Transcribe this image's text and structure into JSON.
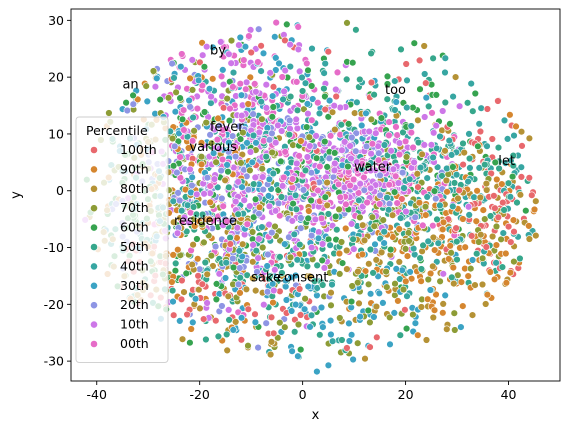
{
  "chart_data": {
    "type": "scatter",
    "title": "",
    "xlabel": "x",
    "ylabel": "y",
    "xlim": [
      -45,
      50
    ],
    "ylim": [
      -33.5,
      32
    ],
    "xticks": [
      -40,
      -20,
      0,
      20,
      40
    ],
    "yticks": [
      -30,
      -20,
      -10,
      0,
      10,
      20,
      30
    ],
    "grid": false,
    "legend": {
      "title": "Percentile",
      "placement": "lower-left",
      "entries": [
        {
          "label": "100th",
          "color": "#e8686d"
        },
        {
          "label": "90th",
          "color": "#d5862f"
        },
        {
          "label": "80th",
          "color": "#b59235"
        },
        {
          "label": "70th",
          "color": "#8d9c36"
        },
        {
          "label": "60th",
          "color": "#36a34f"
        },
        {
          "label": "50th",
          "color": "#36a78c"
        },
        {
          "label": "40th",
          "color": "#37a6a2"
        },
        {
          "label": "30th",
          "color": "#3ba3c4"
        },
        {
          "label": "20th",
          "color": "#8e95e4"
        },
        {
          "label": "10th",
          "color": "#cd77e8"
        },
        {
          "label": "00th",
          "color": "#e66cc8"
        }
      ]
    },
    "annotations": [
      {
        "text": "by",
        "x": -18,
        "y": 24
      },
      {
        "text": "an",
        "x": -35,
        "y": 18
      },
      {
        "text": "too",
        "x": 16,
        "y": 17
      },
      {
        "text": "fever",
        "x": -18,
        "y": 10.5
      },
      {
        "text": "various",
        "x": -22,
        "y": 7
      },
      {
        "text": "water",
        "x": 10,
        "y": 3.5
      },
      {
        "text": "let",
        "x": 38,
        "y": 4.5
      },
      {
        "text": "residence",
        "x": -25,
        "y": -6
      },
      {
        "text": "sake",
        "x": -10,
        "y": -16
      },
      {
        "text": "consent",
        "x": -5,
        "y": -16
      }
    ],
    "clusters": [
      {
        "series": "100th",
        "cx": 38,
        "cy": -3,
        "sx": 6,
        "sy": 7,
        "n": 70
      },
      {
        "series": "100th",
        "cx": -20,
        "cy": -18,
        "sx": 14,
        "sy": 5,
        "n": 70
      },
      {
        "series": "100th",
        "cx": 10,
        "cy": 12,
        "sx": 20,
        "sy": 12,
        "n": 60
      },
      {
        "series": "90th",
        "cx": 30,
        "cy": -10,
        "sx": 10,
        "sy": 8,
        "n": 140
      },
      {
        "series": "90th",
        "cx": -25,
        "cy": 0,
        "sx": 10,
        "sy": 14,
        "n": 120
      },
      {
        "series": "80th",
        "cx": 25,
        "cy": -5,
        "sx": 12,
        "sy": 12,
        "n": 130
      },
      {
        "series": "80th",
        "cx": -15,
        "cy": -10,
        "sx": 14,
        "sy": 10,
        "n": 110
      },
      {
        "series": "70th",
        "cx": 10,
        "cy": -10,
        "sx": 18,
        "sy": 10,
        "n": 150
      },
      {
        "series": "70th",
        "cx": -18,
        "cy": 8,
        "sx": 12,
        "sy": 10,
        "n": 110
      },
      {
        "series": "60th",
        "cx": 5,
        "cy": 5,
        "sx": 20,
        "sy": 12,
        "n": 170
      },
      {
        "series": "60th",
        "cx": -25,
        "cy": -5,
        "sx": 8,
        "sy": 12,
        "n": 90
      },
      {
        "series": "50th",
        "cx": 20,
        "cy": 0,
        "sx": 14,
        "sy": 11,
        "n": 170
      },
      {
        "series": "50th",
        "cx": -10,
        "cy": -10,
        "sx": 14,
        "sy": 10,
        "n": 120
      },
      {
        "series": "40th",
        "cx": 25,
        "cy": 2,
        "sx": 10,
        "sy": 8,
        "n": 170
      },
      {
        "series": "40th",
        "cx": -10,
        "cy": 5,
        "sx": 14,
        "sy": 14,
        "n": 140
      },
      {
        "series": "30th",
        "cx": -12,
        "cy": 10,
        "sx": 12,
        "sy": 12,
        "n": 170
      },
      {
        "series": "30th",
        "cx": 5,
        "cy": -18,
        "sx": 14,
        "sy": 6,
        "n": 110
      },
      {
        "series": "20th",
        "cx": -15,
        "cy": 0,
        "sx": 10,
        "sy": 12,
        "n": 170
      },
      {
        "series": "20th",
        "cx": 12,
        "cy": 2,
        "sx": 8,
        "sy": 6,
        "n": 90
      },
      {
        "series": "10th",
        "cx": -12,
        "cy": 5,
        "sx": 9,
        "sy": 12,
        "n": 240
      },
      {
        "series": "10th",
        "cx": 12,
        "cy": 3,
        "sx": 9,
        "sy": 6,
        "n": 190
      },
      {
        "series": "00th",
        "cx": -10,
        "cy": 8,
        "sx": 8,
        "sy": 10,
        "n": 170
      },
      {
        "series": "00th",
        "cx": 12,
        "cy": 2,
        "sx": 8,
        "sy": 5,
        "n": 150
      }
    ]
  }
}
